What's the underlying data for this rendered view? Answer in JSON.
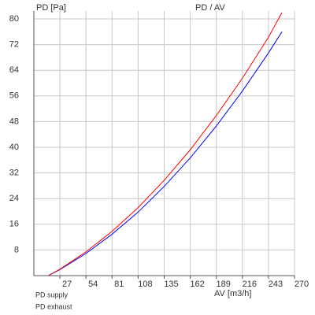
{
  "chart_data": {
    "type": "line",
    "title": "PD / AV",
    "y_label": "PD [Pa]",
    "x_label": "AV [m3/h]",
    "x": [
      15,
      27,
      54,
      81,
      108,
      135,
      162,
      189,
      216,
      243,
      257
    ],
    "series": [
      {
        "name": "PD supply",
        "color": "#0000ff",
        "values": [
          0,
          1.9,
          6.9,
          12.9,
          19.8,
          27.8,
          36.7,
          46.6,
          57.5,
          69.4,
          76
        ]
      },
      {
        "name": "PD exhaust",
        "color": "#ff0000",
        "values": [
          0,
          2.0,
          7.4,
          13.8,
          21.2,
          29.7,
          39.2,
          49.9,
          61.5,
          74.3,
          82
        ]
      }
    ],
    "xlim": [
      0,
      270
    ],
    "xticks": [
      27,
      54,
      81,
      108,
      135,
      162,
      189,
      216,
      243,
      270
    ],
    "ylim": [
      0,
      80
    ],
    "yticks": [
      8,
      16,
      24,
      32,
      40,
      48,
      56,
      64,
      72,
      80
    ],
    "grid": true
  }
}
